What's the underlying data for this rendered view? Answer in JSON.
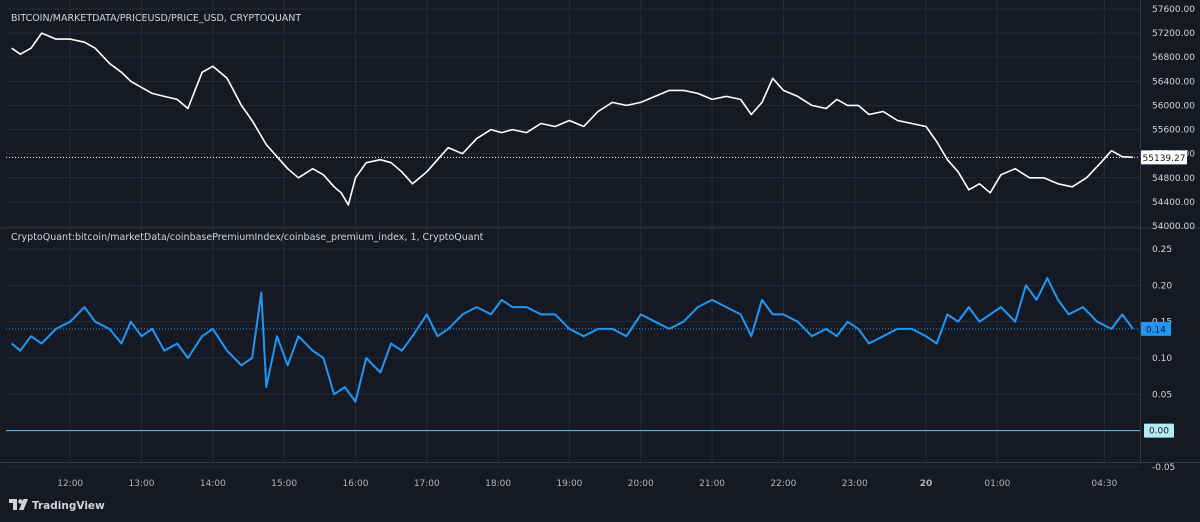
{
  "chart_data": [
    {
      "type": "line",
      "title": "BITCOIN/MARKETDATA/PRICEUSD/PRICE_USD, CRYPTOQUANT",
      "ylim": [
        54000,
        57600
      ],
      "y_ticks": [
        "54000.00",
        "54400.00",
        "54800.00",
        "55200.00",
        "55600.00",
        "56000.00",
        "56400.00",
        "56800.00",
        "57200.00",
        "57600.00"
      ],
      "last_value_label": "55139.27",
      "last_value": 55139.27,
      "line_color": "#ffffff",
      "label_bg": "#ffffff",
      "label_fg": "#131722",
      "grid": true,
      "series": [
        {
          "hours": [
            11.18,
            11.3,
            11.45,
            11.6,
            11.8,
            12.0,
            12.2,
            12.35,
            12.55,
            12.72,
            12.85,
            13.0,
            13.15,
            13.32,
            13.5,
            13.65,
            13.85,
            14.0,
            14.2,
            14.4,
            14.55,
            14.75,
            14.9,
            15.05,
            15.2,
            15.4,
            15.55,
            15.7,
            15.8,
            15.9,
            16.0,
            16.15,
            16.35,
            16.5,
            16.65,
            16.8,
            16.9,
            17.0,
            17.15,
            17.3,
            17.5,
            17.7,
            17.9,
            18.05,
            18.2,
            18.4,
            18.6,
            18.8,
            19.0,
            19.2,
            19.4,
            19.6,
            19.8,
            20.0,
            20.2,
            20.4,
            20.6,
            20.8,
            21.0,
            21.2,
            21.4,
            21.55,
            21.7,
            21.85,
            22.0,
            22.2,
            22.4,
            22.6,
            22.75,
            22.9,
            23.05,
            23.2,
            23.4,
            23.6,
            23.8,
            24.0,
            24.15,
            24.3,
            24.45,
            24.6,
            24.75,
            24.9,
            25.05,
            25.25,
            25.45,
            25.65,
            25.85,
            26.05,
            26.25,
            26.45,
            26.6,
            26.75,
            26.9
          ],
          "values": [
            56950,
            56850,
            56950,
            57200,
            57100,
            57100,
            57050,
            56950,
            56700,
            56550,
            56400,
            56300,
            56200,
            56150,
            56100,
            55950,
            56550,
            56650,
            56450,
            56000,
            55750,
            55350,
            55150,
            54950,
            54800,
            54950,
            54850,
            54650,
            54550,
            54350,
            54800,
            55050,
            55100,
            55050,
            54900,
            54700,
            54800,
            54900,
            55100,
            55300,
            55200,
            55450,
            55600,
            55550,
            55600,
            55550,
            55700,
            55650,
            55750,
            55650,
            55900,
            56050,
            56000,
            56050,
            56150,
            56250,
            56250,
            56200,
            56100,
            56150,
            56100,
            55850,
            56050,
            56450,
            56250,
            56150,
            56000,
            55950,
            56100,
            56000,
            56000,
            55850,
            55900,
            55750,
            55700,
            55650,
            55400,
            55100,
            54900,
            54600,
            54700,
            54550,
            54850,
            54950,
            54800,
            54800,
            54700,
            54650,
            54800,
            55050,
            55250,
            55150,
            55139.27
          ]
        }
      ]
    },
    {
      "type": "line",
      "title": "CryptoQuant:bitcoin/marketData/coinbasePremiumIndex/coinbase_premium_index, 1, CryptoQuant",
      "ylim": [
        -0.05,
        0.25
      ],
      "y_ticks": [
        "-0.05",
        "0.00",
        "0.05",
        "0.10",
        "0.15",
        "0.20",
        "0.25"
      ],
      "last_value_label": "0.14",
      "last_value": 0.14,
      "zero_label": "0.00",
      "line_color": "#2196f3",
      "zero_line_color": "#5fc2e8",
      "label_bg": "#2196f3",
      "label_fg": "#131722",
      "grid": true,
      "series": [
        {
          "hours": [
            11.18,
            11.3,
            11.45,
            11.6,
            11.8,
            12.0,
            12.2,
            12.35,
            12.55,
            12.72,
            12.85,
            13.0,
            13.15,
            13.32,
            13.5,
            13.65,
            13.85,
            14.0,
            14.2,
            14.4,
            14.55,
            14.68,
            14.75,
            14.9,
            15.05,
            15.2,
            15.4,
            15.55,
            15.7,
            15.85,
            16.0,
            16.15,
            16.35,
            16.5,
            16.65,
            16.8,
            17.0,
            17.15,
            17.3,
            17.5,
            17.7,
            17.9,
            18.05,
            18.2,
            18.4,
            18.6,
            18.8,
            19.0,
            19.2,
            19.4,
            19.6,
            19.8,
            20.0,
            20.2,
            20.4,
            20.6,
            20.8,
            21.0,
            21.2,
            21.4,
            21.55,
            21.7,
            21.85,
            22.0,
            22.2,
            22.4,
            22.6,
            22.75,
            22.9,
            23.05,
            23.2,
            23.4,
            23.6,
            23.8,
            24.0,
            24.15,
            24.3,
            24.45,
            24.6,
            24.75,
            24.9,
            25.05,
            25.25,
            25.4,
            25.55,
            25.7,
            25.85,
            26.0,
            26.2,
            26.4,
            26.6,
            26.75,
            26.9
          ],
          "values": [
            0.12,
            0.11,
            0.13,
            0.12,
            0.14,
            0.15,
            0.17,
            0.15,
            0.14,
            0.12,
            0.15,
            0.13,
            0.14,
            0.11,
            0.12,
            0.1,
            0.13,
            0.14,
            0.11,
            0.09,
            0.1,
            0.19,
            0.06,
            0.13,
            0.09,
            0.13,
            0.11,
            0.1,
            0.05,
            0.06,
            0.04,
            0.1,
            0.08,
            0.12,
            0.11,
            0.13,
            0.16,
            0.13,
            0.14,
            0.16,
            0.17,
            0.16,
            0.18,
            0.17,
            0.17,
            0.16,
            0.16,
            0.14,
            0.13,
            0.14,
            0.14,
            0.13,
            0.16,
            0.15,
            0.14,
            0.15,
            0.17,
            0.18,
            0.17,
            0.16,
            0.13,
            0.18,
            0.16,
            0.16,
            0.15,
            0.13,
            0.14,
            0.13,
            0.15,
            0.14,
            0.12,
            0.13,
            0.14,
            0.14,
            0.13,
            0.12,
            0.16,
            0.15,
            0.17,
            0.15,
            0.16,
            0.17,
            0.15,
            0.2,
            0.18,
            0.21,
            0.18,
            0.16,
            0.17,
            0.15,
            0.14,
            0.16,
            0.14
          ]
        }
      ]
    }
  ],
  "time_axis": {
    "labels": [
      "12:00",
      "13:00",
      "14:00",
      "15:00",
      "16:00",
      "17:00",
      "18:00",
      "19:00",
      "20:00",
      "21:00",
      "22:00",
      "23:00",
      "20",
      "01:00",
      "04:30"
    ],
    "hours": [
      12,
      13,
      14,
      15,
      16,
      17,
      18,
      19,
      20,
      21,
      22,
      23,
      24,
      25,
      26.5
    ],
    "bold": [
      false,
      false,
      false,
      false,
      false,
      false,
      false,
      false,
      false,
      false,
      false,
      false,
      true,
      false,
      false
    ],
    "range": [
      11.1,
      27.0
    ]
  },
  "branding": {
    "name": "TradingView"
  },
  "colors": {
    "background": "#151924",
    "grid": "#262b3a",
    "divider": "#363a45",
    "text": "#d1d4dc"
  }
}
